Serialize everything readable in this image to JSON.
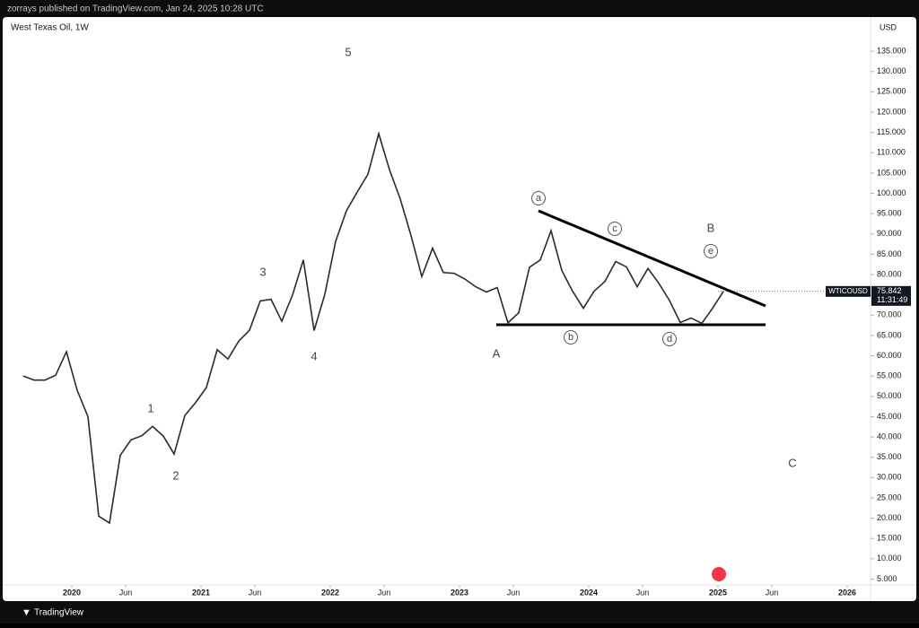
{
  "header": {
    "text": "zorrays published on TradingView.com, Jan 24, 2025 10:28 UTC"
  },
  "footer": {
    "brand": "TradingView"
  },
  "chart_data": {
    "type": "line",
    "title": "West Texas Oil, 1W",
    "y_unit": "USD",
    "color": "#2a2a2a",
    "x": [
      "2019-08",
      "2019-09",
      "2019-10",
      "2019-11",
      "2019-12",
      "2020-01",
      "2020-02",
      "2020-03",
      "2020-04",
      "2020-05",
      "2020-06",
      "2020-07",
      "2020-08",
      "2020-09",
      "2020-10",
      "2020-11",
      "2020-12",
      "2021-01",
      "2021-02",
      "2021-03",
      "2021-04",
      "2021-05",
      "2021-06",
      "2021-07",
      "2021-08",
      "2021-09",
      "2021-10",
      "2021-11",
      "2021-12",
      "2022-01",
      "2022-02",
      "2022-03",
      "2022-04",
      "2022-05",
      "2022-06",
      "2022-07",
      "2022-08",
      "2022-09",
      "2022-10",
      "2022-11",
      "2022-12",
      "2023-01",
      "2023-02",
      "2023-03",
      "2023-04",
      "2023-05",
      "2023-06",
      "2023-07",
      "2023-08",
      "2023-09",
      "2023-10",
      "2023-11",
      "2023-12",
      "2024-01",
      "2024-02",
      "2024-03",
      "2024-04",
      "2024-05",
      "2024-06",
      "2024-07",
      "2024-08",
      "2024-09",
      "2024-10",
      "2024-11",
      "2024-12",
      "2025-01"
    ],
    "values": [
      55,
      54,
      54,
      55.2,
      61,
      51.5,
      45,
      20.5,
      18.8,
      35.5,
      39.3,
      40.3,
      42.6,
      40.2,
      35.8,
      45.3,
      48.5,
      52.2,
      61.5,
      59.2,
      63.6,
      66.3,
      73.5,
      73.9,
      68.5,
      75,
      83.6,
      66.2,
      75.2,
      88.2,
      95.7,
      100.3,
      104.7,
      114.7,
      105.8,
      98.6,
      89.6,
      79.5,
      86.5,
      80.5,
      80.3,
      78.9,
      77,
      75.7,
      76.8,
      68.1,
      70.6,
      81.8,
      83.6,
      90.8,
      81,
      75.9,
      71.7,
      75.9,
      78.3,
      83.2,
      81.9,
      77,
      81.5,
      77.9,
      73.6,
      68.2,
      69.3,
      68,
      71.7,
      75.842
    ],
    "xlim": [
      "2019-07",
      "2026-03"
    ],
    "xticks": [
      {
        "value": "2020-01",
        "label": "2020"
      },
      {
        "value": "2020-06",
        "label": "Jun"
      },
      {
        "value": "2021-01",
        "label": "2021"
      },
      {
        "value": "2021-06",
        "label": "Jun"
      },
      {
        "value": "2022-01",
        "label": "2022"
      },
      {
        "value": "2022-06",
        "label": "Jun"
      },
      {
        "value": "2023-01",
        "label": "2023"
      },
      {
        "value": "2023-06",
        "label": "Jun"
      },
      {
        "value": "2024-01",
        "label": "2024"
      },
      {
        "value": "2024-06",
        "label": "Jun"
      },
      {
        "value": "2025-01",
        "label": "2025"
      },
      {
        "value": "2025-06",
        "label": "Jun"
      },
      {
        "value": "2026-01",
        "label": "2026"
      }
    ],
    "ylim": [
      4,
      143.2
    ],
    "yticks": [
      {
        "value": 5,
        "label": "5.000"
      },
      {
        "value": 10,
        "label": "10.000"
      },
      {
        "value": 15,
        "label": "15.000"
      },
      {
        "value": 20,
        "label": "20.000"
      },
      {
        "value": 25,
        "label": "25.000"
      },
      {
        "value": 30,
        "label": "30.000"
      },
      {
        "value": 35,
        "label": "35.000"
      },
      {
        "value": 40,
        "label": "40.000"
      },
      {
        "value": 45,
        "label": "45.000"
      },
      {
        "value": 50,
        "label": "50.000"
      },
      {
        "value": 55,
        "label": "55.000"
      },
      {
        "value": 60,
        "label": "60.000"
      },
      {
        "value": 65,
        "label": "65.000"
      },
      {
        "value": 70,
        "label": "70.000"
      },
      {
        "value": 75,
        "label": "75.000"
      },
      {
        "value": 80,
        "label": "80.000"
      },
      {
        "value": 85,
        "label": "85.000"
      },
      {
        "value": 90,
        "label": "90.000"
      },
      {
        "value": 95,
        "label": "95.000"
      },
      {
        "value": 100,
        "label": "100.000"
      },
      {
        "value": 105,
        "label": "105.000"
      },
      {
        "value": 110,
        "label": "110.000"
      },
      {
        "value": 115,
        "label": "115.000"
      },
      {
        "value": 120,
        "label": "120.000"
      },
      {
        "value": 125,
        "label": "125.000"
      },
      {
        "value": 130,
        "label": "130.000"
      },
      {
        "value": 135,
        "label": "135.000"
      }
    ],
    "grid": false,
    "symbol": "WTICOUSD",
    "last_price": 75.842,
    "countdown": "11:31:49",
    "waves": [
      "1",
      "2",
      "3",
      "4",
      "5",
      "A",
      "B",
      "C"
    ],
    "sub_waves": [
      "a",
      "b",
      "c",
      "d",
      "e"
    ]
  }
}
